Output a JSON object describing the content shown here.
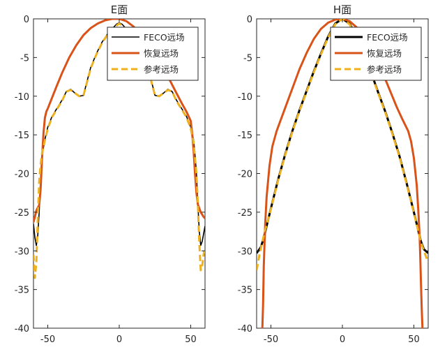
{
  "figure": {
    "background": "#ffffff",
    "axis_color": "#262626"
  },
  "chart_data": [
    {
      "type": "line",
      "title": "E面",
      "xlabel": "",
      "ylabel": "",
      "xlim": [
        -60,
        60
      ],
      "ylim": [
        -40,
        0
      ],
      "xticks": [
        -50,
        0,
        50
      ],
      "yticks": [
        0,
        -5,
        -10,
        -15,
        -20,
        -25,
        -30,
        -35,
        -40
      ],
      "grid": false,
      "legend_position": "top-right",
      "series": [
        {
          "name": "FECO远场",
          "color": "#000000",
          "line_width": 1.6,
          "dash": "",
          "x": [
            -60,
            -59,
            -58,
            -57,
            -56,
            -55,
            -54,
            -52,
            -50,
            -47,
            -44,
            -40,
            -37,
            -34,
            -31,
            -28,
            -25,
            -23,
            -20,
            -16,
            -12,
            -8,
            -4,
            -2,
            0,
            2,
            4,
            8,
            12,
            16,
            20,
            23,
            25,
            28,
            31,
            34,
            37,
            40,
            44,
            47,
            50,
            52,
            53,
            54,
            55,
            56,
            57,
            58,
            59,
            60
          ],
          "y": [
            -26.5,
            -28.3,
            -29.3,
            -28.0,
            -25.0,
            -20.5,
            -17.6,
            -15.6,
            -14.0,
            -12.6,
            -11.7,
            -10.5,
            -9.4,
            -9.1,
            -9.6,
            -10.0,
            -9.9,
            -8.4,
            -6.3,
            -4.5,
            -3.0,
            -1.9,
            -1.1,
            -0.7,
            -0.5,
            -0.7,
            -1.1,
            -1.9,
            -3.0,
            -4.5,
            -6.3,
            -8.4,
            -9.9,
            -10.0,
            -9.6,
            -9.1,
            -9.4,
            -10.5,
            -11.7,
            -12.6,
            -14.0,
            -15.6,
            -17.6,
            -20.0,
            -24.0,
            -27.5,
            -29.3,
            -28.8,
            -27.8,
            -26.8
          ]
        },
        {
          "name": "恢复远场",
          "color": "#d95319",
          "line_width": 3,
          "dash": "",
          "x": [
            -60,
            -59,
            -58,
            -57,
            -56,
            -55,
            -54,
            -53,
            -52,
            -51,
            -50,
            -47,
            -44,
            -40,
            -35,
            -30,
            -25,
            -20,
            -15,
            -10,
            -5,
            0,
            5,
            10,
            15,
            20,
            25,
            30,
            35,
            40,
            44,
            47,
            50,
            51,
            52,
            53,
            54,
            55,
            56,
            57,
            58,
            59,
            60
          ],
          "y": [
            -26.3,
            -25.6,
            -24.8,
            -24.4,
            -24.1,
            -22.0,
            -18.0,
            -14.8,
            -12.8,
            -12.0,
            -11.6,
            -10.2,
            -8.8,
            -7.0,
            -5.0,
            -3.4,
            -2.1,
            -1.2,
            -0.6,
            -0.2,
            0.0,
            0.0,
            -0.3,
            -1.0,
            -2.0,
            -3.3,
            -4.7,
            -6.2,
            -7.8,
            -9.6,
            -11.0,
            -12.0,
            -13.2,
            -14.8,
            -17.0,
            -20.0,
            -22.5,
            -24.0,
            -24.5,
            -25.0,
            -25.3,
            -25.6,
            -25.8
          ]
        },
        {
          "name": "参考远场",
          "color": "#edb120",
          "line_width": 3,
          "dash": "9,5",
          "x": [
            -60,
            -59,
            -58,
            -57,
            -56,
            -55,
            -54,
            -52,
            -50,
            -47,
            -44,
            -40,
            -37,
            -34,
            -31,
            -28,
            -25,
            -23,
            -20,
            -16,
            -12,
            -8,
            -4,
            0,
            4,
            8,
            12,
            16,
            20,
            23,
            25,
            28,
            31,
            34,
            37,
            40,
            44,
            47,
            50,
            52,
            54,
            55,
            56,
            57,
            58,
            59,
            60
          ],
          "y": [
            -30.5,
            -33.5,
            -31.5,
            -26.0,
            -21.0,
            -18.8,
            -17.4,
            -15.7,
            -14.2,
            -12.7,
            -11.8,
            -10.6,
            -9.4,
            -9.2,
            -9.6,
            -10.0,
            -9.9,
            -8.5,
            -6.4,
            -4.6,
            -3.1,
            -2.0,
            -1.2,
            -0.6,
            -1.2,
            -2.0,
            -3.1,
            -4.6,
            -6.4,
            -8.5,
            -9.9,
            -10.0,
            -9.6,
            -9.2,
            -9.4,
            -10.6,
            -11.8,
            -12.7,
            -14.2,
            -16.0,
            -20.0,
            -24.0,
            -29.0,
            -32.5,
            -32.0,
            -30.5,
            -29.5
          ]
        }
      ]
    },
    {
      "type": "line",
      "title": "H面",
      "xlabel": "",
      "ylabel": "",
      "xlim": [
        -60,
        60
      ],
      "ylim": [
        -40,
        0
      ],
      "xticks": [
        -50,
        0,
        50
      ],
      "yticks": [
        0,
        -5,
        -10,
        -15,
        -20,
        -25,
        -30,
        -35,
        -40
      ],
      "grid": false,
      "legend_position": "top-right",
      "series": [
        {
          "name": "FECO远场",
          "color": "#000000",
          "line_width": 3,
          "dash": "",
          "x": [
            -60,
            -57,
            -55,
            -53,
            -50,
            -45,
            -40,
            -35,
            -30,
            -25,
            -20,
            -15,
            -10,
            -5,
            0,
            5,
            10,
            15,
            20,
            25,
            30,
            35,
            40,
            45,
            50,
            53,
            55,
            57,
            60
          ],
          "y": [
            -30.3,
            -29.5,
            -28.3,
            -26.8,
            -24.5,
            -20.8,
            -17.5,
            -14.5,
            -11.8,
            -9.3,
            -6.8,
            -4.5,
            -2.3,
            -0.6,
            0.0,
            -0.6,
            -2.3,
            -4.5,
            -6.9,
            -9.5,
            -12.0,
            -14.8,
            -17.8,
            -21.3,
            -25.0,
            -27.3,
            -28.8,
            -29.8,
            -30.3
          ]
        },
        {
          "name": "恢复远场",
          "color": "#d95319",
          "line_width": 3,
          "dash": "",
          "x": [
            -56,
            -55.5,
            -55,
            -54,
            -53,
            -51,
            -49,
            -46,
            -42,
            -38,
            -34,
            -30,
            -25,
            -20,
            -15,
            -10,
            -5,
            0,
            5,
            10,
            15,
            20,
            25,
            30,
            34,
            38,
            42,
            46,
            48,
            50,
            52,
            53,
            54,
            54.5,
            55,
            55.5,
            56
          ],
          "y": [
            -40,
            -37.0,
            -32.0,
            -26.5,
            -23.0,
            -19.0,
            -16.5,
            -14.5,
            -12.5,
            -10.5,
            -8.5,
            -6.5,
            -4.4,
            -2.6,
            -1.3,
            -0.5,
            -0.1,
            0.0,
            -0.3,
            -1.1,
            -2.3,
            -3.9,
            -5.8,
            -7.8,
            -9.6,
            -11.4,
            -13.0,
            -14.5,
            -15.8,
            -18.0,
            -21.5,
            -24.5,
            -28.0,
            -31.0,
            -34.5,
            -37.5,
            -40
          ]
        },
        {
          "name": "参考远场",
          "color": "#edb120",
          "line_width": 3,
          "dash": "9,5",
          "x": [
            -60,
            -58,
            -56,
            -54,
            -52,
            -50,
            -45,
            -40,
            -35,
            -30,
            -25,
            -20,
            -15,
            -10,
            -5,
            0,
            5,
            10,
            15,
            20,
            25,
            30,
            35,
            40,
            45,
            50,
            53,
            55,
            57,
            60
          ],
          "y": [
            -32.5,
            -30.5,
            -28.8,
            -27.3,
            -26.0,
            -24.6,
            -20.9,
            -17.6,
            -14.6,
            -11.9,
            -9.4,
            -6.9,
            -4.6,
            -2.4,
            -0.7,
            0.0,
            -0.7,
            -2.4,
            -4.6,
            -7.0,
            -9.6,
            -12.1,
            -14.9,
            -17.9,
            -21.4,
            -25.1,
            -27.4,
            -28.9,
            -30.0,
            -31.5
          ]
        }
      ]
    }
  ]
}
